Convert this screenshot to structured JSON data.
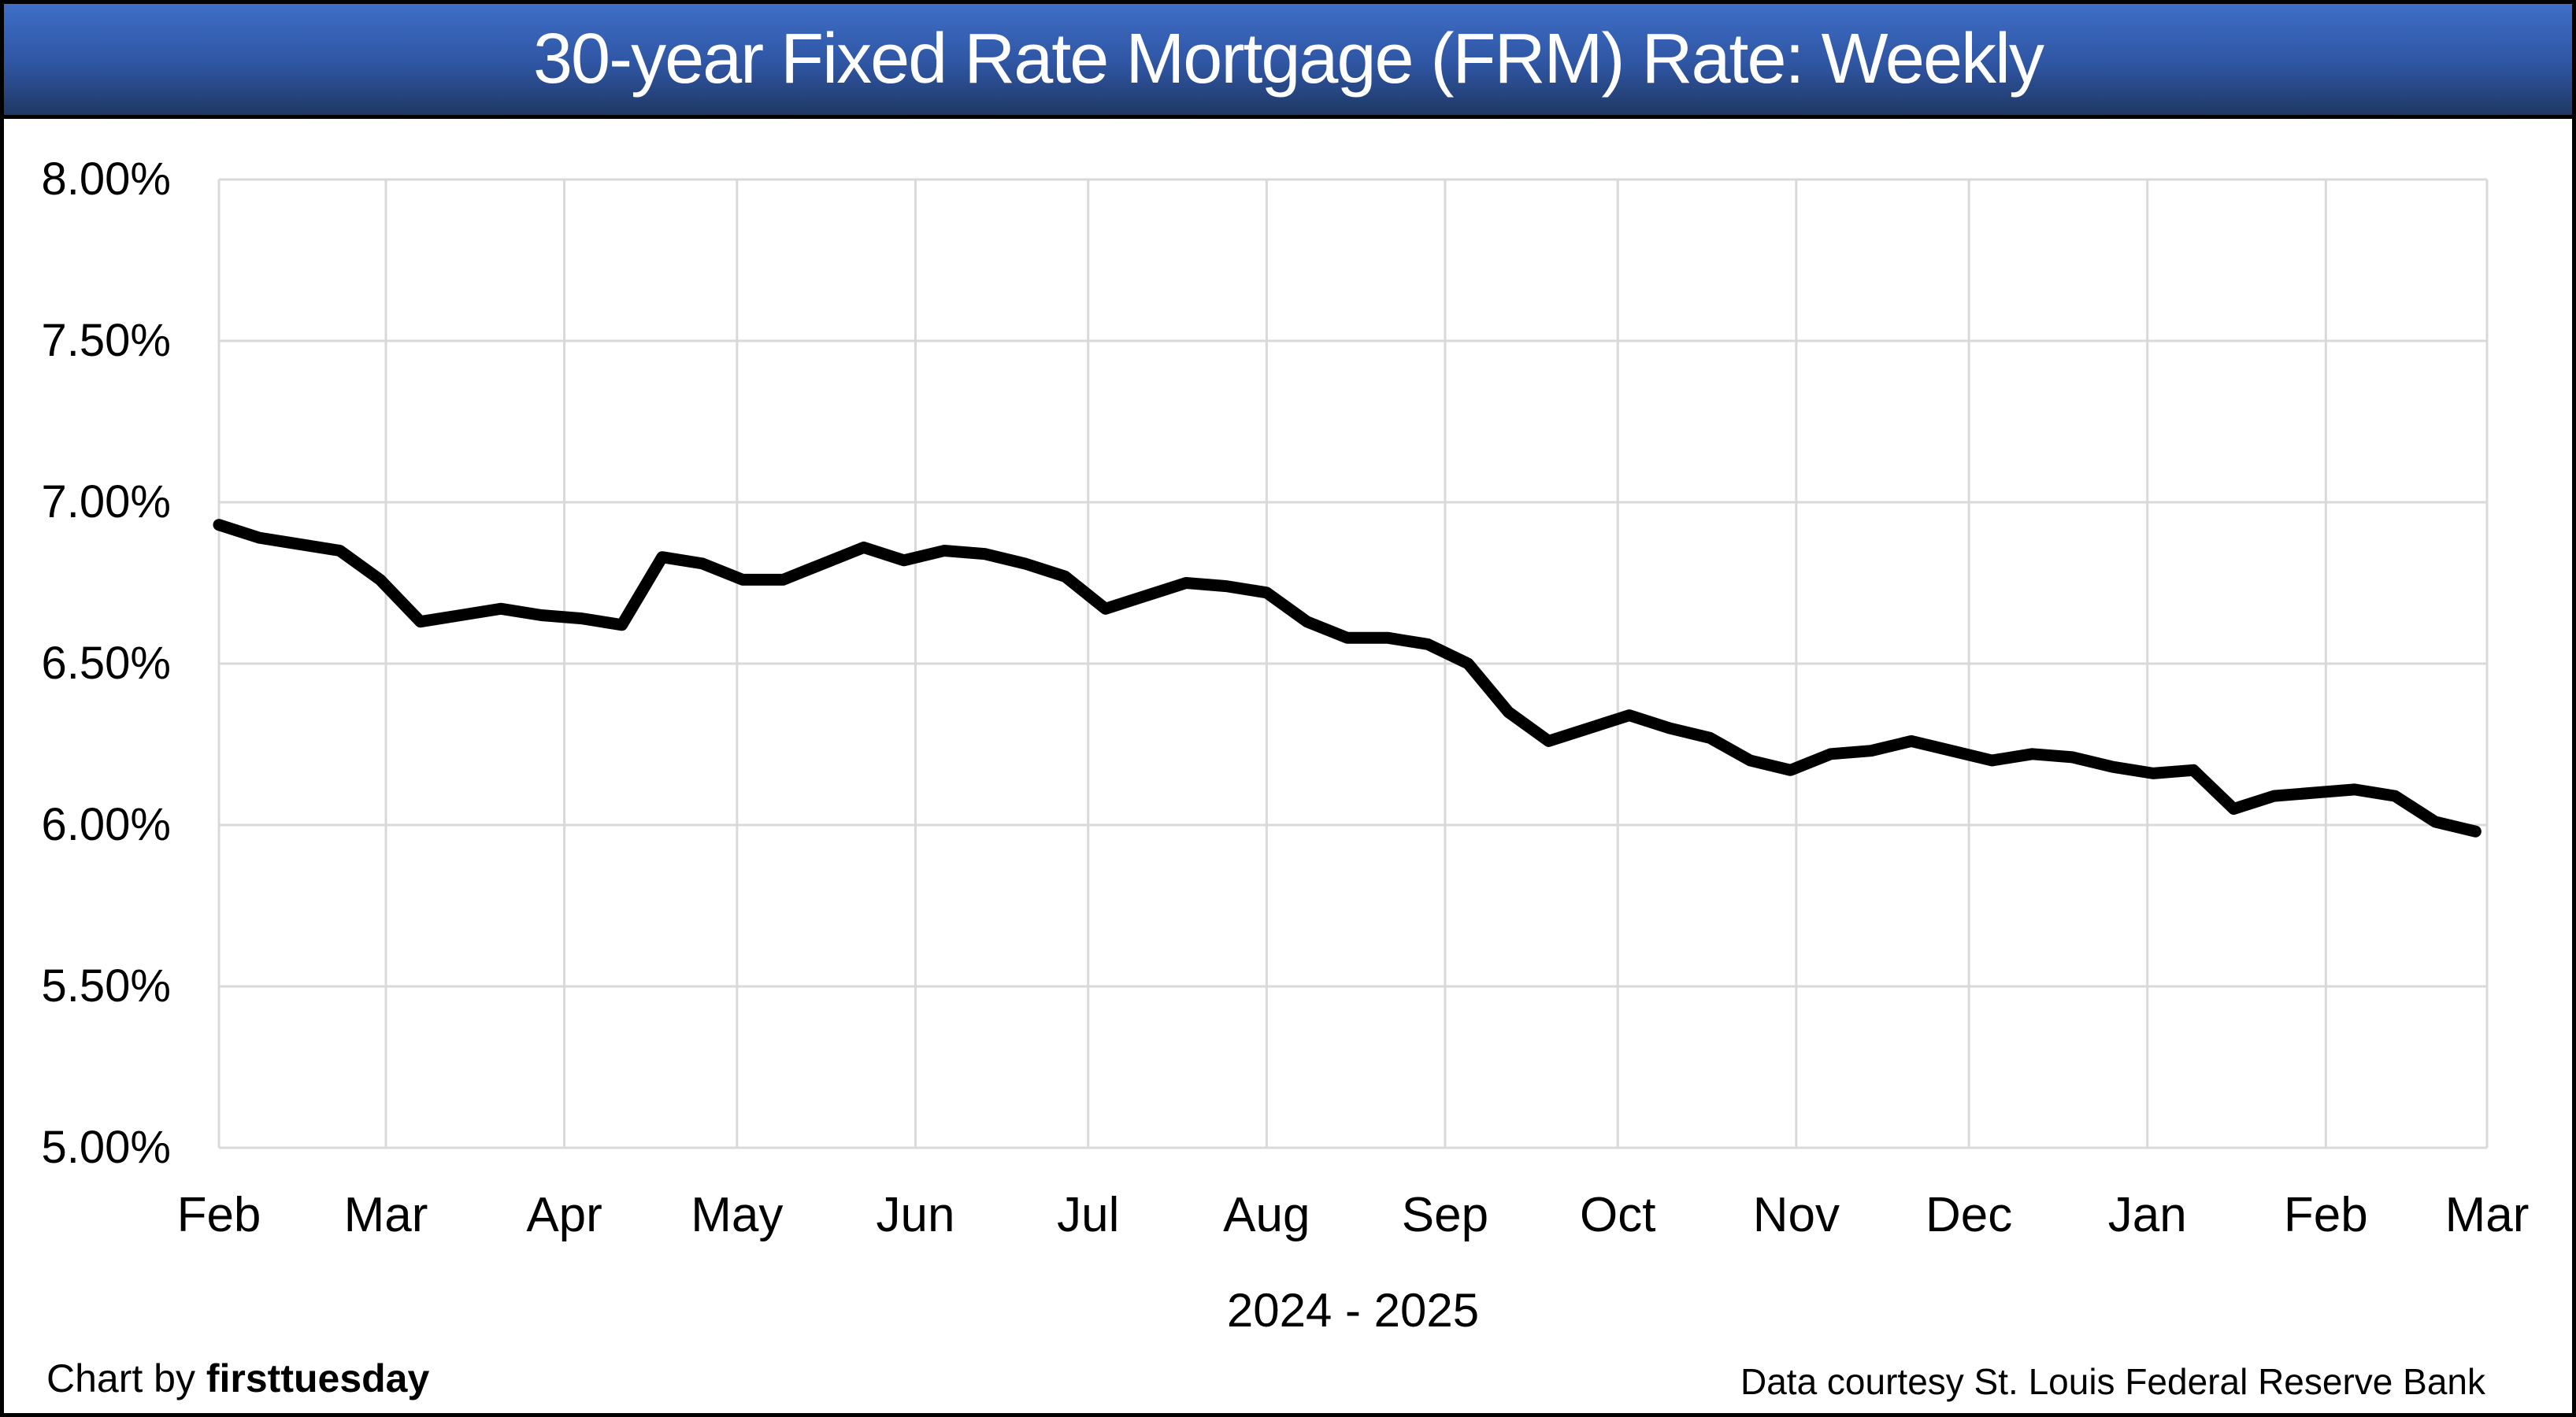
{
  "title_bar": {
    "title": "30-year Fixed Rate Mortgage (FRM) Rate: Weekly"
  },
  "chart_data": {
    "type": "line",
    "title": "30-year Fixed Rate Mortgage (FRM) Rate: Weekly",
    "xlabel": "2024 - 2025",
    "ylabel": "",
    "grid": true,
    "legend": "none",
    "x_axis": {
      "unit": "days since start of first month shown",
      "min": 0,
      "max": 394,
      "tick_days": [
        0,
        29,
        60,
        90,
        121,
        151,
        182,
        213,
        243,
        274,
        304,
        335,
        366,
        394
      ],
      "tick_labels": [
        "Feb",
        "Mar",
        "Apr",
        "May",
        "Jun",
        "Jul",
        "Aug",
        "Sep",
        "Oct",
        "Nov",
        "Dec",
        "Jan",
        "Feb",
        "Mar"
      ]
    },
    "y_axis": {
      "min": 5.0,
      "max": 8.0,
      "step": 0.5,
      "format": "percent",
      "tick_labels": [
        "8.00%",
        "7.50%",
        "7.00%",
        "6.50%",
        "6.00%",
        "5.50%",
        "5.00%"
      ]
    },
    "series": [
      {
        "name": "30-year FRM average rate, weekly",
        "first_point_day": 0,
        "point_interval_days": 7,
        "values_percent": [
          6.93,
          6.89,
          6.87,
          6.85,
          6.76,
          6.63,
          6.65,
          6.67,
          6.65,
          6.64,
          6.62,
          6.83,
          6.81,
          6.76,
          6.76,
          6.81,
          6.86,
          6.82,
          6.85,
          6.84,
          6.81,
          6.77,
          6.67,
          6.71,
          6.75,
          6.74,
          6.72,
          6.63,
          6.58,
          6.58,
          6.56,
          6.5,
          6.35,
          6.26,
          6.3,
          6.34,
          6.3,
          6.27,
          6.2,
          6.17,
          6.22,
          6.23,
          6.26,
          6.23,
          6.2,
          6.22,
          6.21,
          6.18,
          6.16,
          6.17,
          6.05,
          6.09,
          6.1,
          6.11,
          6.09,
          6.01,
          5.98
        ]
      }
    ]
  },
  "footer": {
    "left_prefix": "Chart by ",
    "left_brand": "firsttuesday",
    "right_text": "Data courtesy St. Louis Federal Reserve Bank"
  },
  "colors": {
    "line": "#000000",
    "gridline": "#D9D9D9",
    "background": "#FFFFFF",
    "canvas_border": "#000000",
    "title_text": "#FFFFFF",
    "title_gradient_top": "#3E6EC8",
    "title_gradient_mid": "#2F55A2",
    "title_gradient_bottom": "#1F3864",
    "axis_text": "#000000"
  }
}
